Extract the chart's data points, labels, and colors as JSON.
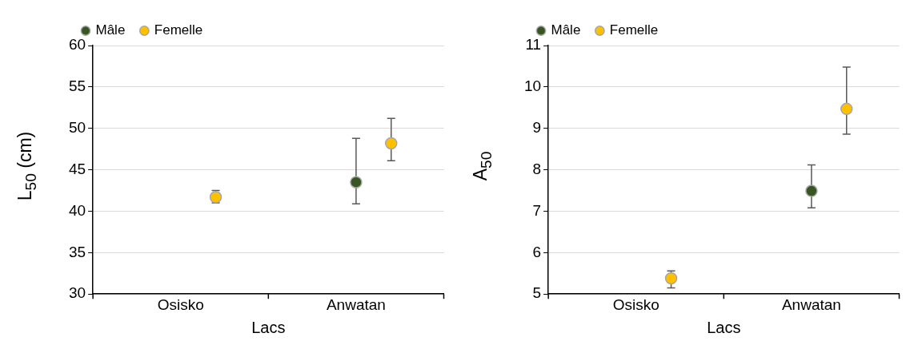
{
  "chart_data": [
    {
      "type": "scatter",
      "xlabel": "Lacs",
      "ylabel": "L$_{50}$ (cm)",
      "categories": [
        "Osisko",
        "Anwatan"
      ],
      "ylim": [
        30,
        60
      ],
      "yticks": [
        30,
        35,
        40,
        45,
        50,
        55,
        60
      ],
      "grid": "y",
      "legend": "top left",
      "marker": "circle",
      "series": [
        {
          "name": "Mâle",
          "color": "#375623",
          "values": [
            null,
            43.5
          ],
          "errors": [
            null,
            [
              40.9,
              48.8
            ]
          ]
        },
        {
          "name": "Femelle",
          "color": "#ffc000",
          "values": [
            41.7,
            48.2
          ],
          "errors": [
            [
              41.0,
              42.5
            ],
            [
              46.1,
              51.2
            ]
          ]
        }
      ]
    },
    {
      "type": "scatter",
      "xlabel": "Lacs",
      "ylabel": "A$_{50}$",
      "categories": [
        "Osisko",
        "Anwatan"
      ],
      "ylim": [
        5,
        11
      ],
      "yticks": [
        5,
        6,
        7,
        8,
        9,
        10,
        11
      ],
      "grid": "y",
      "legend": "top left",
      "marker": "circle",
      "series": [
        {
          "name": "Mâle",
          "color": "#375623",
          "values": [
            null,
            7.49
          ],
          "errors": [
            null,
            [
              7.08,
              8.12
            ]
          ]
        },
        {
          "name": "Femelle",
          "color": "#ffc000",
          "values": [
            5.38,
            9.47
          ],
          "errors": [
            [
              5.15,
              5.56
            ],
            [
              8.86,
              10.48
            ]
          ]
        }
      ]
    }
  ]
}
